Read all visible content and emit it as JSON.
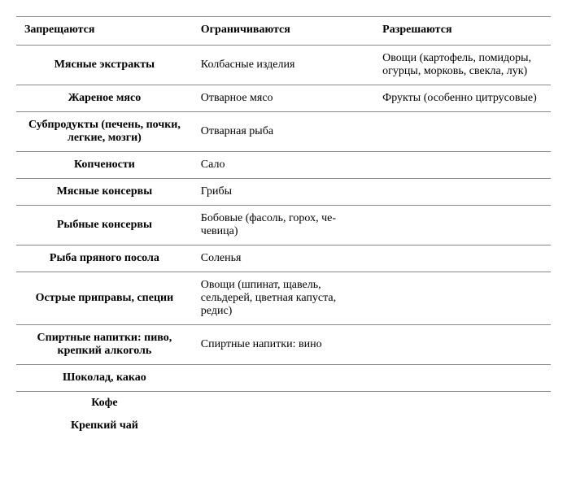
{
  "table": {
    "columns": [
      "Запрещаются",
      "Ограничиваются",
      "Разрешаются"
    ],
    "rows": [
      [
        "Мясные экстракты",
        "Колбасные изделия",
        "Овощи (картофель, помидо­ры, огурцы, морковь, свек­ла, лук)"
      ],
      [
        "Жареное мясо",
        "Отварное мясо",
        "Фрукты (особенно цитрусо­вые)"
      ],
      [
        "Субпродукты (печень, поч­ки, легкие, мозги)",
        "Отварная рыба",
        ""
      ],
      [
        "Копчености",
        "Сало",
        ""
      ],
      [
        "Мясные консервы",
        "Грибы",
        ""
      ],
      [
        "Рыбные консервы",
        "Бобовые (фасоль, горох, че­чевица)",
        ""
      ],
      [
        "Рыба пряного посола",
        "Соленья",
        ""
      ],
      [
        "Острые приправы, специи",
        "Овощи (шпинат, щавель, сельдерей, цветная капуста, редис)",
        ""
      ],
      [
        "Спиртные напитки: пиво, крепкий алкоголь",
        "Спиртные напитки: вино",
        ""
      ],
      [
        "Шоколад, какао",
        "",
        ""
      ],
      [
        "Кофе",
        "",
        ""
      ],
      [
        "Крепкий чай",
        "",
        ""
      ]
    ],
    "border_color": "#888888",
    "background_color": "#ffffff",
    "text_color": "#000000",
    "header_fontsize": 14,
    "body_fontsize": 14
  }
}
